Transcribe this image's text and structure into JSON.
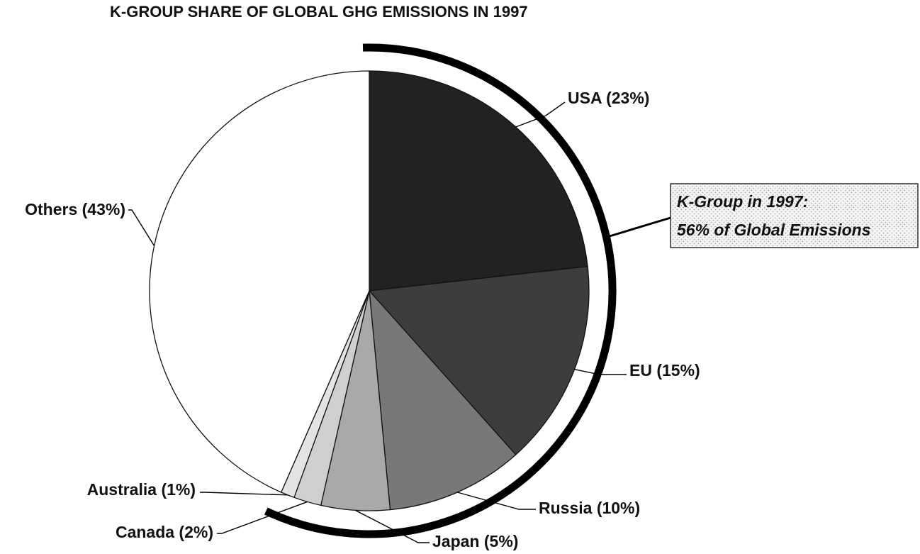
{
  "chart_data": {
    "type": "pie",
    "title": "K-GROUP SHARE OF GLOBAL GHG EMISSIONS IN 1997",
    "slices": [
      {
        "name": "USA",
        "value": 23,
        "label": "USA (23%)",
        "color": "#222222"
      },
      {
        "name": "EU",
        "value": 15,
        "label": "EU (15%)",
        "color": "#3d3d3d"
      },
      {
        "name": "Russia",
        "value": 10,
        "label": "Russia (10%)",
        "color": "#787878"
      },
      {
        "name": "Japan",
        "value": 5,
        "label": "Japan (5%)",
        "color": "#a9a9a9"
      },
      {
        "name": "Canada",
        "value": 2,
        "label": "Canada (2%)",
        "color": "#cfcfcf"
      },
      {
        "name": "Australia",
        "value": 1,
        "label": "Australia (1%)",
        "color": "#e3e3e3"
      },
      {
        "name": "Others",
        "value": 43,
        "label": "Others (43%)",
        "color": "#ffffff"
      }
    ],
    "group_bracket": {
      "members": [
        "USA",
        "EU",
        "Russia",
        "Japan",
        "Canada",
        "Australia"
      ],
      "line1": "K-Group in 1997:",
      "line2": "56% of Global Emissions"
    }
  }
}
